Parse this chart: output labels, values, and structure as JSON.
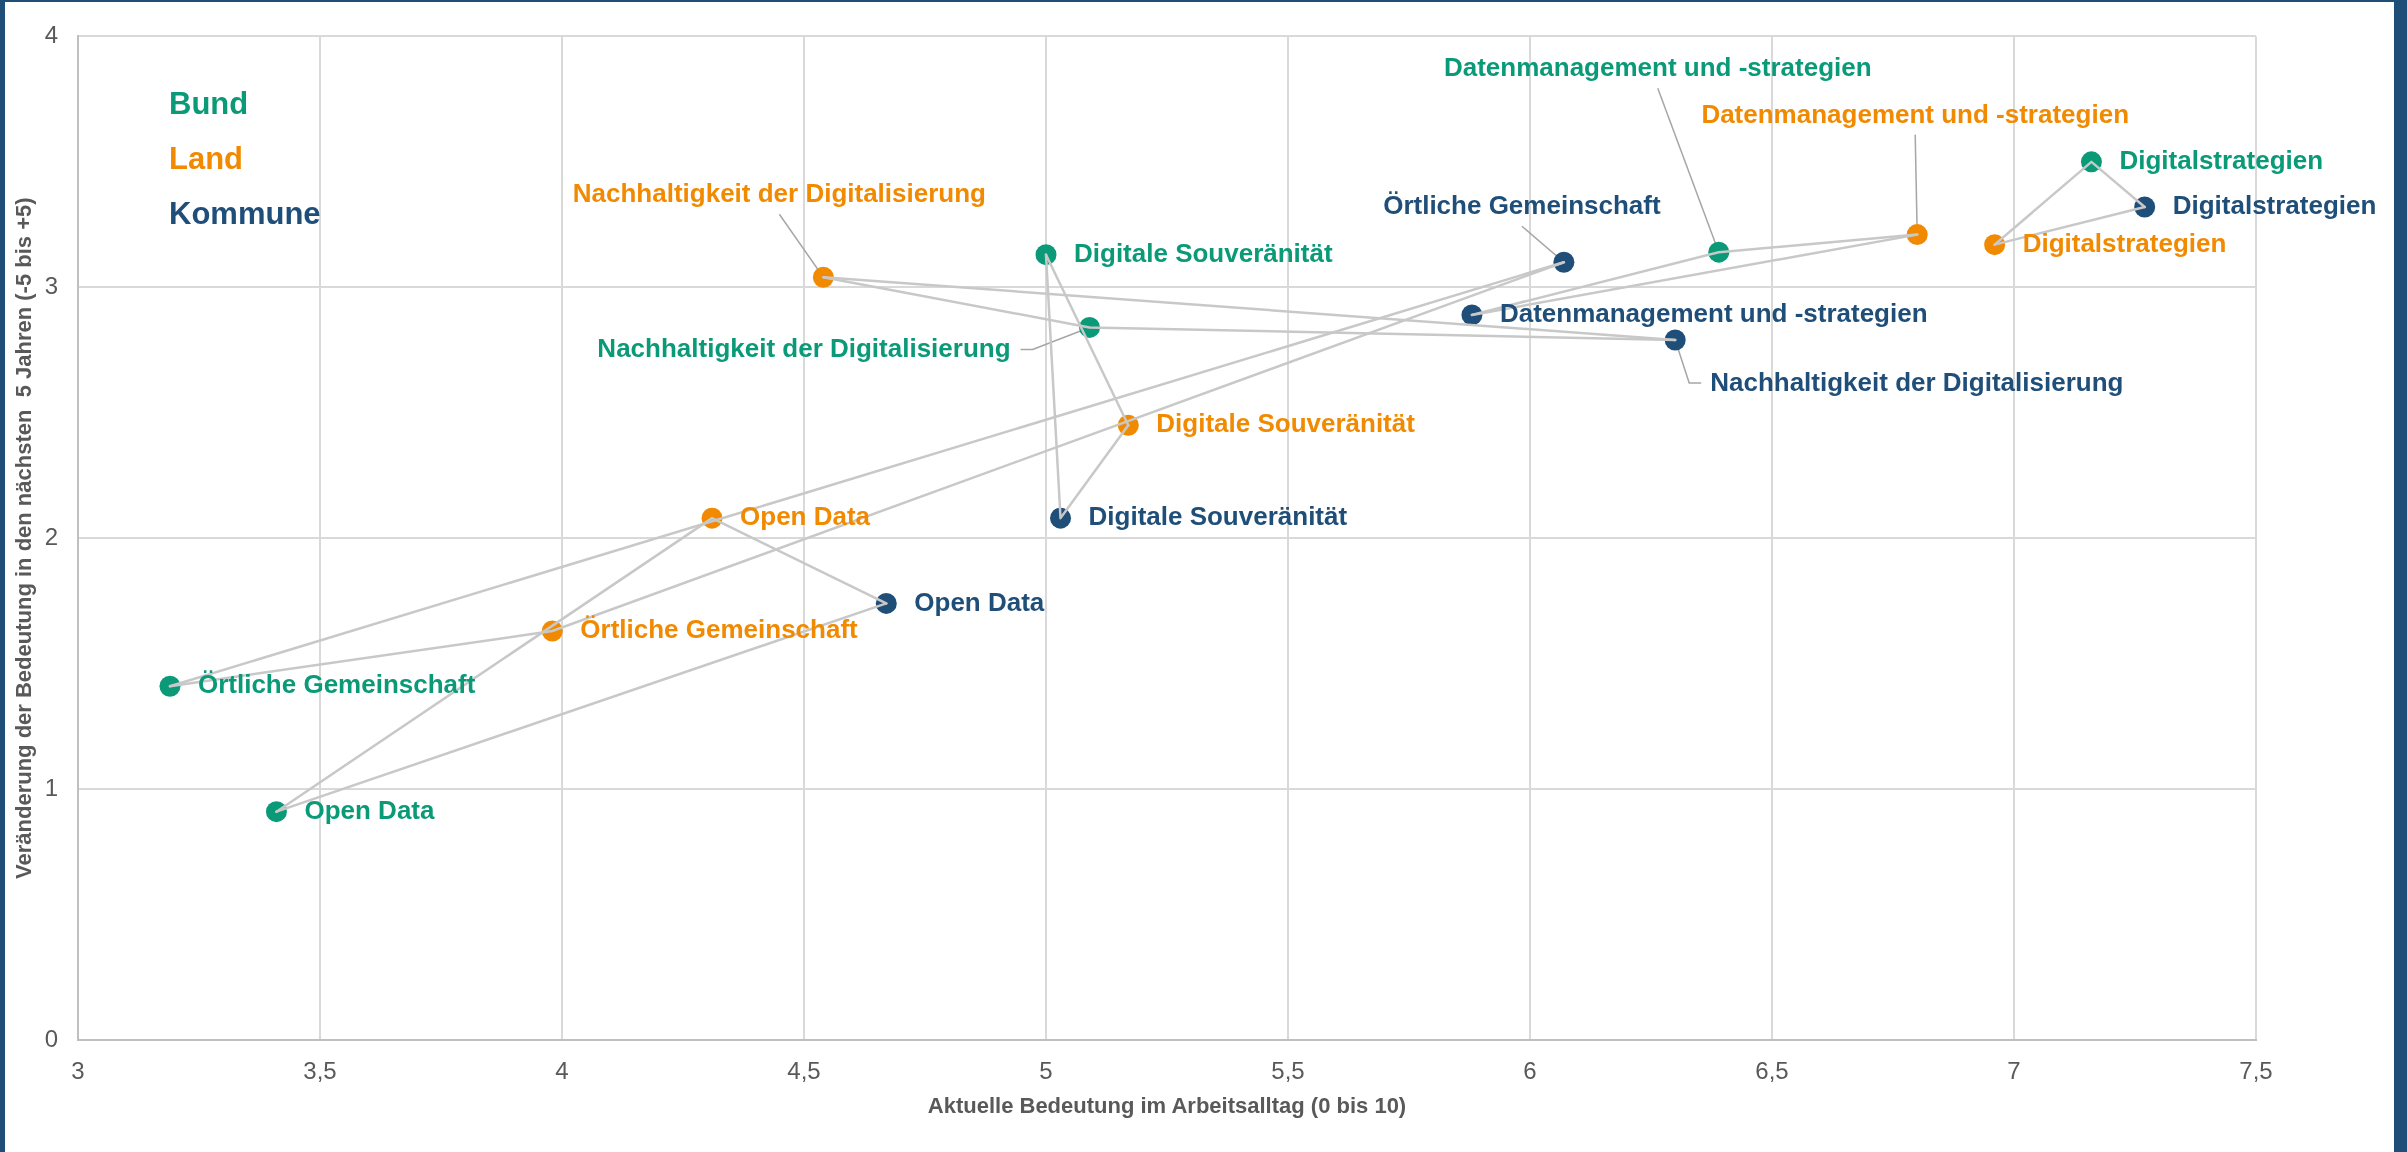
{
  "chart_data": {
    "type": "scatter",
    "xlabel": "Aktuelle Bedeutung im Arbeitsalltag (0 bis 10)",
    "ylabel": "Veränderung der Bedeutung in den nächsten  5 Jahren (-5 bis +5)",
    "xlim": [
      3,
      7.5
    ],
    "xticks": [
      3,
      {
        "value": 3.5,
        "label": "3,5"
      },
      4,
      {
        "value": 4.5,
        "label": "4,5"
      },
      5,
      {
        "value": 5.5,
        "label": "5,5"
      },
      6,
      {
        "value": 6.5,
        "label": "6,5"
      },
      7,
      {
        "value": 7.5,
        "label": "7,5"
      }
    ],
    "ylim": [
      0,
      4
    ],
    "yticks": [
      0,
      1,
      2,
      3,
      4
    ],
    "grid": true,
    "legend": "top left",
    "marker": "circle",
    "series": [
      {
        "name": "Bund",
        "color": "#0a9a78",
        "x": [
          3.19,
          3.41,
          5.0,
          5.09,
          6.39,
          7.16
        ],
        "values": [
          1.41,
          0.91,
          3.13,
          2.84,
          3.14,
          3.5
        ],
        "value_labels": [
          "Örtliche Gemeinschaft",
          "Open Data",
          "Digitale Souveränität",
          "Nachhaltigkeit der Digitalisierung",
          "Datenmanagement und -strategien",
          "Digitalstrategien"
        ]
      },
      {
        "name": "Land",
        "color": "#f18a00",
        "x": [
          3.98,
          4.31,
          5.17,
          4.54,
          6.8,
          6.96
        ],
        "values": [
          1.63,
          2.08,
          2.45,
          3.04,
          3.21,
          3.17
        ],
        "value_labels": [
          "Örtliche Gemeinschaft",
          "Open Data",
          "Digitale Souveränität",
          "Nachhaltigkeit der Digitalisierung",
          "Datenmanagement und -strategien",
          "Digitalstrategien"
        ]
      },
      {
        "name": "Kommune",
        "color": "#1f4e79",
        "x": [
          6.07,
          4.67,
          5.03,
          6.3,
          5.88,
          7.27
        ],
        "values": [
          3.1,
          1.74,
          2.08,
          2.79,
          2.89,
          3.32
        ],
        "value_labels": [
          "Örtliche Gemeinschaft",
          "Open Data",
          "Digitale Souveränität",
          "Nachhaltigkeit der Digitalisierung",
          "Datenmanagement und -strategien",
          "Digitalstrategien"
        ]
      },
      {
        "type": "line",
        "color": "#c8c8c8",
        "marker": "none",
        "x": [
          3.19,
          3.98,
          6.07
        ],
        "values": [
          1.41,
          1.63,
          3.1
        ]
      },
      {
        "type": "line",
        "color": "#c8c8c8",
        "marker": "none",
        "x": [
          3.19,
          6.07
        ],
        "values": [
          1.41,
          3.1
        ]
      },
      {
        "type": "line",
        "color": "#c8c8c8",
        "marker": "none",
        "x": [
          3.41,
          4.31,
          4.67
        ],
        "values": [
          0.91,
          2.08,
          1.74
        ]
      },
      {
        "type": "line",
        "color": "#c8c8c8",
        "marker": "none",
        "x": [
          3.41,
          4.67
        ],
        "values": [
          0.91,
          1.74
        ]
      },
      {
        "type": "line",
        "color": "#c8c8c8",
        "marker": "none",
        "x": [
          5.0,
          5.03,
          5.17
        ],
        "values": [
          3.13,
          2.08,
          2.45
        ]
      },
      {
        "type": "line",
        "color": "#c8c8c8",
        "marker": "none",
        "x": [
          5.0,
          5.17
        ],
        "values": [
          3.13,
          2.45
        ]
      },
      {
        "type": "line",
        "color": "#c8c8c8",
        "marker": "none",
        "x": [
          4.54,
          5.09,
          6.3
        ],
        "values": [
          3.04,
          2.84,
          2.79
        ]
      },
      {
        "type": "line",
        "color": "#c8c8c8",
        "marker": "none",
        "x": [
          4.54,
          6.3
        ],
        "values": [
          3.04,
          2.79
        ]
      },
      {
        "type": "line",
        "color": "#c8c8c8",
        "marker": "none",
        "x": [
          5.88,
          6.39,
          6.8
        ],
        "values": [
          2.89,
          3.14,
          3.21
        ]
      },
      {
        "type": "line",
        "color": "#c8c8c8",
        "marker": "none",
        "x": [
          5.88,
          6.8
        ],
        "values": [
          2.89,
          3.21
        ]
      },
      {
        "type": "line",
        "color": "#c8c8c8",
        "marker": "none",
        "x": [
          6.96,
          7.16,
          7.27
        ],
        "values": [
          3.17,
          3.5,
          3.32
        ]
      },
      {
        "type": "line",
        "color": "#c8c8c8",
        "marker": "none",
        "x": [
          6.96,
          7.27
        ],
        "values": [
          3.17,
          3.32
        ]
      }
    ]
  }
}
